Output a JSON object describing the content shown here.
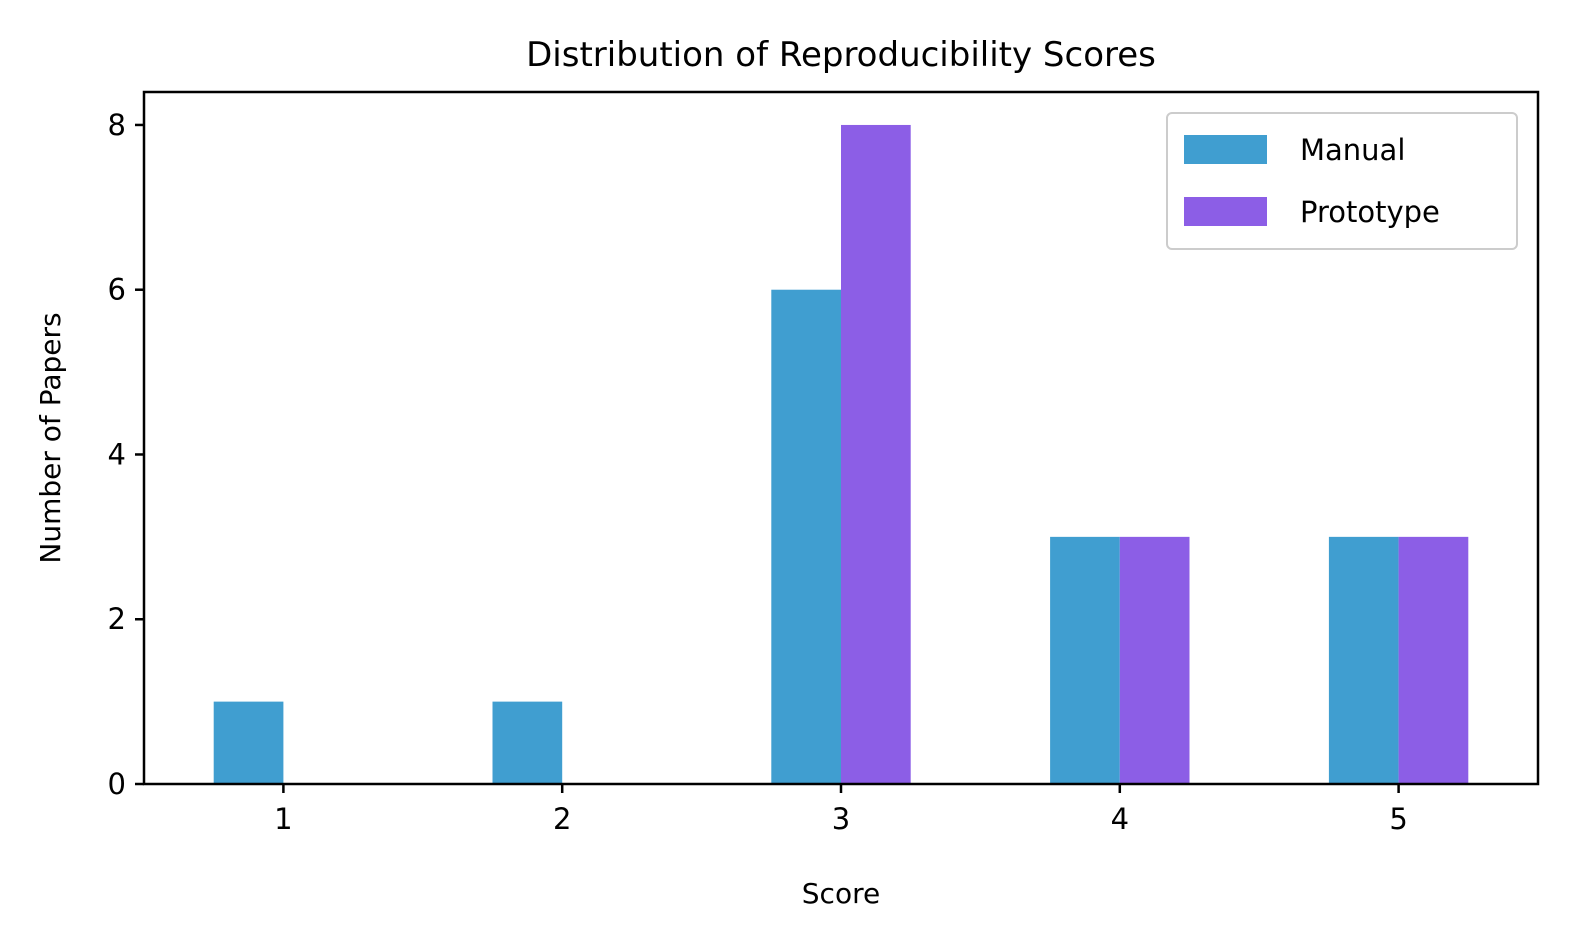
{
  "chart_data": {
    "type": "bar",
    "title": "Distribution of Reproducibility Scores",
    "xlabel": "Score",
    "ylabel": "Number of Papers",
    "categories": [
      "1",
      "2",
      "3",
      "4",
      "5"
    ],
    "series": [
      {
        "name": "Manual",
        "color": "#409ED0",
        "values": [
          1,
          1,
          6,
          3,
          3
        ]
      },
      {
        "name": "Prototype",
        "color": "#8C5EE6",
        "values": [
          0,
          0,
          8,
          3,
          3
        ]
      }
    ],
    "yticks": [
      "0",
      "2",
      "4",
      "6",
      "8"
    ],
    "ylim": [
      0,
      8.4
    ],
    "grid": false,
    "legend_position": "top-right"
  }
}
